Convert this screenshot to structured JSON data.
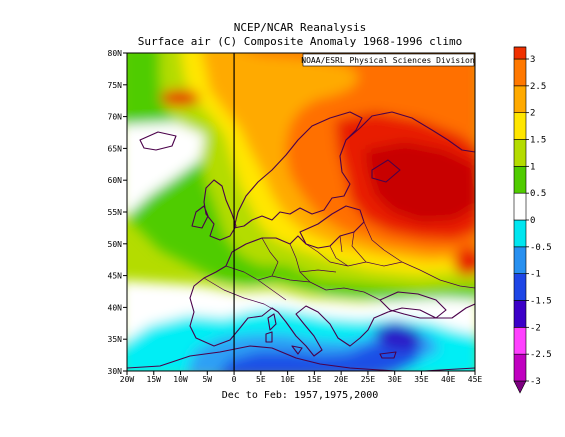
{
  "title_line1": "NCEP/NCAR Reanalysis",
  "title_line2": "Surface air (C) Composite Anomaly 1968-1996 climo",
  "credit": "NOAA/ESRL Physical Sciences Division",
  "subtitle": "Dec to Feb: 1957,1975,2000",
  "map": {
    "lon_range": [
      -20,
      45
    ],
    "lat_range": [
      30,
      80
    ],
    "lon_ticks": [
      {
        "v": -20,
        "label": "20W"
      },
      {
        "v": -15,
        "label": "15W"
      },
      {
        "v": -10,
        "label": "10W"
      },
      {
        "v": -5,
        "label": "5W"
      },
      {
        "v": 0,
        "label": "0"
      },
      {
        "v": 5,
        "label": "5E"
      },
      {
        "v": 10,
        "label": "10E"
      },
      {
        "v": 15,
        "label": "15E"
      },
      {
        "v": 20,
        "label": "20E"
      },
      {
        "v": 25,
        "label": "25E"
      },
      {
        "v": 30,
        "label": "30E"
      },
      {
        "v": 35,
        "label": "35E"
      },
      {
        "v": 40,
        "label": "40E"
      },
      {
        "v": 45,
        "label": "45E"
      }
    ],
    "lat_ticks": [
      {
        "v": 30,
        "label": "30N"
      },
      {
        "v": 35,
        "label": "35N"
      },
      {
        "v": 40,
        "label": "40N"
      },
      {
        "v": 45,
        "label": "45N"
      },
      {
        "v": 50,
        "label": "50N"
      },
      {
        "v": 55,
        "label": "55N"
      },
      {
        "v": 60,
        "label": "60N"
      },
      {
        "v": 65,
        "label": "65N"
      },
      {
        "v": 70,
        "label": "70N"
      },
      {
        "v": 75,
        "label": "75N"
      },
      {
        "v": 80,
        "label": "80N"
      }
    ],
    "meridian_line_lon": 0
  },
  "colorbar": {
    "levels": [
      -3,
      -2.5,
      -2,
      -1.5,
      -1,
      -0.5,
      0,
      0.5,
      1,
      1.5,
      2,
      2.5,
      3
    ],
    "labels": [
      "-3",
      "-2.5",
      "-2",
      "-1.5",
      "-1",
      "-0.5",
      "0",
      "0.5",
      "1",
      "1.5",
      "2",
      "2.5",
      "3"
    ],
    "colors": [
      "#7d0080",
      "#c000c0",
      "#ff40ff",
      "#3c00c8",
      "#1e46e6",
      "#2890f0",
      "#00e6f0",
      "#ffffff",
      "#50cc00",
      "#b4dc00",
      "#ffe600",
      "#ffaa00",
      "#ff7800",
      "#f03000",
      "#cc0000"
    ]
  },
  "anomaly_palette": {
    "neg_15": "#2a1ec8",
    "neg_10": "#1e50e6",
    "neg_05": "#2fa0f5",
    "neg_00": "#00eef5",
    "zero": "#ffffff",
    "pos_05": "#50cc00",
    "pos_10": "#b4dc00",
    "pos_15": "#ffe600",
    "pos_20": "#ffaa00",
    "pos_25": "#ff7000",
    "pos_30": "#e81e00",
    "pos_35": "#c80000"
  },
  "coast_color": "#4a004a"
}
